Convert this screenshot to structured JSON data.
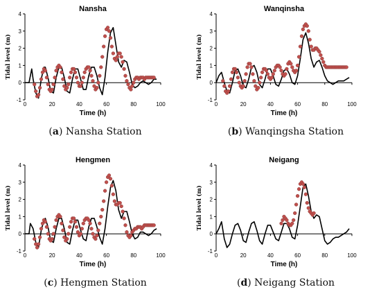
{
  "colors": {
    "model": "#000000",
    "observed": "#c0504d",
    "observed_edge": "#8b3a38",
    "axis": "#000000"
  },
  "chart_data": [
    {
      "type": "line",
      "title": "Nansha",
      "xlabel": "Time (h)",
      "ylabel": "Tidal level (m)",
      "caption_letter": "a",
      "caption_text": " Nansha Station",
      "xlim": [
        0,
        100
      ],
      "ylim": [
        -1,
        4
      ],
      "xticks": [
        0,
        20,
        40,
        60,
        80,
        100
      ],
      "yticks": [
        -1,
        0,
        1,
        2,
        3,
        4
      ],
      "grid": false,
      "series": [
        {
          "style": "line",
          "x": [
            0,
            3,
            5,
            6,
            8,
            10,
            12,
            14,
            15,
            17,
            19,
            21,
            23,
            25,
            27,
            29,
            31,
            33,
            35,
            37,
            39,
            41,
            43,
            45,
            47,
            49,
            51,
            53,
            55,
            57,
            59,
            61,
            63,
            65,
            67,
            69,
            71,
            73,
            75,
            77,
            79,
            81,
            83,
            85,
            87,
            89,
            91,
            93,
            95,
            97
          ],
          "y": [
            0,
            0,
            0.8,
            0.2,
            -0.6,
            -0.9,
            0.2,
            0.9,
            0.9,
            0.3,
            -0.5,
            -0.6,
            0.3,
            0.9,
            0.9,
            0.3,
            -0.5,
            -0.6,
            0.2,
            0.8,
            0.8,
            0.2,
            -0.4,
            -0.4,
            0.4,
            0.9,
            0.9,
            0.4,
            -0.3,
            -0.7,
            0.3,
            1.8,
            2.9,
            3.2,
            2.2,
            1.2,
            0.9,
            1.3,
            1.2,
            0.6,
            -0.1,
            -0.3,
            -0.2,
            0,
            0.1,
            0,
            -0.1,
            0,
            0.2,
            0.2
          ]
        },
        {
          "style": "points",
          "x": [
            7,
            8,
            9,
            10,
            11,
            12,
            13,
            14,
            15,
            16,
            17,
            18,
            19,
            20,
            21,
            22,
            23,
            24,
            25,
            26,
            27,
            28,
            29,
            30,
            31,
            32,
            33,
            34,
            35,
            36,
            37,
            38,
            39,
            40,
            41,
            42,
            43,
            44,
            45,
            46,
            47,
            48,
            49,
            50,
            51,
            52,
            53,
            54,
            55,
            56,
            57,
            58,
            59,
            60,
            61,
            62,
            63,
            64,
            65,
            66,
            67,
            68,
            69,
            70,
            71,
            72,
            73,
            74,
            75,
            76,
            77,
            78,
            79,
            80,
            81,
            82,
            83,
            84,
            85,
            86,
            87,
            88,
            89,
            90,
            91,
            92,
            93,
            94,
            95
          ],
          "y": [
            -0.1,
            -0.5,
            -0.8,
            -0.7,
            -0.3,
            0.2,
            0.6,
            0.8,
            0.7,
            0.3,
            -0.1,
            -0.4,
            -0.5,
            -0.4,
            -0.1,
            0.3,
            0.7,
            0.9,
            1.0,
            0.9,
            0.6,
            0.2,
            -0.2,
            -0.4,
            -0.3,
            -0.1,
            0.3,
            0.6,
            0.8,
            0.8,
            0.6,
            0.3,
            0,
            -0.2,
            -0.2,
            0,
            0.3,
            0.6,
            0.8,
            0.9,
            0.9,
            0.7,
            0.4,
            0.1,
            -0.2,
            -0.4,
            -0.3,
            0,
            0.4,
            0.9,
            1.5,
            2.1,
            2.7,
            3.1,
            3.2,
            3.0,
            2.6,
            2.1,
            1.7,
            1.4,
            1.3,
            1.5,
            1.7,
            1.7,
            1.5,
            1.2,
            0.8,
            0.4,
            0.1,
            -0.1,
            -0.3,
            -0.4,
            -0.2,
            0,
            0.2,
            0.3,
            0.3,
            0.2,
            0.3,
            0.3,
            0.3,
            0.2,
            0.3,
            0.3,
            0.3,
            0.3,
            0.3,
            0.3,
            0.3
          ]
        }
      ]
    },
    {
      "type": "line",
      "title": "Wanqinsha",
      "xlabel": "Time (h)",
      "ylabel": "Tidal level (m)",
      "caption_letter": "b",
      "caption_text": " Wanqingsha Station",
      "xlim": [
        0,
        100
      ],
      "ylim": [
        -1,
        4
      ],
      "xticks": [
        0,
        20,
        40,
        60,
        80,
        100
      ],
      "yticks": [
        -1,
        0,
        1,
        2,
        3,
        4
      ],
      "grid": false,
      "series": [
        {
          "style": "line",
          "x": [
            0,
            2,
            4,
            6,
            8,
            10,
            12,
            14,
            16,
            18,
            20,
            22,
            24,
            26,
            28,
            30,
            32,
            34,
            36,
            38,
            40,
            42,
            44,
            46,
            48,
            50,
            52,
            54,
            56,
            58,
            60,
            62,
            64,
            66,
            68,
            70,
            72,
            74,
            76,
            78,
            80,
            82,
            84,
            86,
            88,
            90,
            92,
            94,
            96,
            98
          ],
          "y": [
            0,
            0.4,
            0.6,
            0,
            -0.5,
            -0.6,
            0,
            0.7,
            0.8,
            0.4,
            -0.2,
            -0.3,
            0.2,
            0.9,
            1.0,
            0.6,
            -0.1,
            -0.3,
            0.2,
            0.8,
            0.8,
            0.4,
            -0.1,
            -0.2,
            0.2,
            0.7,
            0.8,
            0.5,
            0,
            -0.1,
            0.4,
            1.4,
            2.5,
            2.9,
            2.3,
            1.4,
            0.9,
            1.2,
            1.3,
            0.9,
            0.4,
            0.1,
            0,
            -0.1,
            0,
            0.1,
            0.1,
            0.1,
            0.2,
            0.3
          ]
        },
        {
          "style": "points",
          "x": [
            5,
            6,
            7,
            8,
            9,
            10,
            11,
            12,
            13,
            14,
            15,
            16,
            17,
            18,
            19,
            20,
            21,
            22,
            23,
            24,
            25,
            26,
            27,
            28,
            29,
            30,
            31,
            32,
            33,
            34,
            35,
            36,
            37,
            38,
            39,
            40,
            41,
            42,
            43,
            44,
            45,
            46,
            47,
            48,
            49,
            50,
            51,
            52,
            53,
            54,
            55,
            56,
            57,
            58,
            59,
            60,
            61,
            62,
            63,
            64,
            65,
            66,
            67,
            68,
            69,
            70,
            71,
            72,
            73,
            74,
            75,
            76,
            77,
            78,
            79,
            80,
            81,
            82,
            83,
            84,
            85,
            86,
            87,
            88,
            89,
            90,
            91,
            92,
            93,
            94,
            95,
            96
          ],
          "y": [
            0.1,
            -0.2,
            -0.5,
            -0.6,
            -0.5,
            -0.2,
            0.2,
            0.6,
            0.8,
            0.8,
            0.6,
            0.3,
            0,
            -0.2,
            -0.3,
            -0.2,
            0.1,
            0.5,
            0.9,
            1.1,
            1.1,
            0.9,
            0.5,
            0.1,
            -0.2,
            -0.4,
            -0.3,
            0,
            0.3,
            0.6,
            0.8,
            0.8,
            0.7,
            0.5,
            0.3,
            0.2,
            0.3,
            0.5,
            0.7,
            0.9,
            1.0,
            1.0,
            0.9,
            0.7,
            0.5,
            0.4,
            0.5,
            0.8,
            1.1,
            1.2,
            1.1,
            0.9,
            0.7,
            0.6,
            0.7,
            1.0,
            1.5,
            2.1,
            2.7,
            3.1,
            3.3,
            3.4,
            3.3,
            3.0,
            2.5,
            2.1,
            1.9,
            1.9,
            2.0,
            2.0,
            1.9,
            1.8,
            1.6,
            1.4,
            1.2,
            1.0,
            0.9,
            0.9,
            0.9,
            0.9,
            0.9,
            0.9,
            0.9,
            0.9,
            0.9,
            0.9,
            0.9,
            0.9,
            0.9,
            0.9,
            0.9,
            0.9
          ]
        }
      ]
    },
    {
      "type": "line",
      "title": "Hengmen",
      "xlabel": "Time (h)",
      "ylabel": "Tidal level (m)",
      "caption_letter": "c",
      "caption_text": " Hengmen Station",
      "xlim": [
        0,
        100
      ],
      "ylim": [
        -1,
        4
      ],
      "xticks": [
        0,
        20,
        40,
        60,
        80,
        100
      ],
      "yticks": [
        -1,
        0,
        1,
        2,
        3,
        4
      ],
      "grid": false,
      "series": [
        {
          "style": "line",
          "x": [
            0,
            3,
            4,
            6,
            8,
            10,
            12,
            14,
            15,
            17,
            19,
            21,
            23,
            25,
            27,
            29,
            31,
            33,
            35,
            37,
            39,
            41,
            43,
            45,
            47,
            49,
            51,
            53,
            55,
            57,
            59,
            61,
            63,
            65,
            67,
            69,
            71,
            73,
            75,
            77,
            79,
            81,
            83,
            85,
            87,
            89,
            91,
            93,
            95,
            97
          ],
          "y": [
            0,
            0,
            0.6,
            0.3,
            -0.5,
            -0.8,
            0.2,
            0.8,
            0.9,
            0.4,
            -0.4,
            -0.5,
            0.3,
            0.9,
            0.9,
            0.3,
            -0.5,
            -0.6,
            0.2,
            0.8,
            0.8,
            0.2,
            -0.3,
            -0.4,
            0.4,
            0.9,
            0.9,
            0.4,
            -0.2,
            -0.6,
            0.3,
            1.6,
            2.7,
            3.1,
            2.5,
            1.4,
            0.9,
            1.3,
            1.3,
            0.7,
            0,
            -0.3,
            -0.2,
            0.1,
            0.1,
            0,
            -0.1,
            0,
            0.2,
            0.3
          ]
        },
        {
          "style": "points",
          "x": [
            7,
            8,
            9,
            10,
            11,
            12,
            13,
            14,
            15,
            16,
            17,
            18,
            19,
            20,
            21,
            22,
            23,
            24,
            25,
            26,
            27,
            28,
            29,
            30,
            31,
            32,
            33,
            34,
            35,
            36,
            37,
            38,
            39,
            40,
            41,
            42,
            43,
            44,
            45,
            46,
            47,
            48,
            49,
            50,
            51,
            52,
            53,
            54,
            55,
            56,
            57,
            58,
            59,
            60,
            61,
            62,
            63,
            64,
            65,
            66,
            67,
            68,
            69,
            70,
            71,
            72,
            73,
            74,
            75,
            76,
            77,
            78,
            79,
            80,
            81,
            82,
            83,
            84,
            85,
            86,
            87,
            88,
            89,
            90,
            91,
            92,
            93,
            94,
            95
          ],
          "y": [
            -0.3,
            -0.6,
            -0.8,
            -0.6,
            -0.2,
            0.3,
            0.6,
            0.8,
            0.7,
            0.4,
            0,
            -0.3,
            -0.4,
            -0.3,
            0,
            0.4,
            0.8,
            1.0,
            1.1,
            1.0,
            0.6,
            0.2,
            -0.2,
            -0.4,
            -0.3,
            0,
            0.4,
            0.7,
            0.9,
            0.9,
            0.7,
            0.4,
            0.1,
            -0.1,
            0,
            0.3,
            0.6,
            0.8,
            0.9,
            0.9,
            0.8,
            0.6,
            0.3,
            0,
            -0.2,
            -0.3,
            -0.1,
            0.2,
            0.6,
            1.0,
            1.4,
            1.9,
            2.5,
            3.0,
            3.3,
            3.4,
            3.2,
            2.8,
            2.3,
            1.9,
            1.7,
            1.7,
            1.8,
            1.8,
            1.6,
            1.3,
            0.9,
            0.5,
            0.1,
            -0.1,
            -0.2,
            -0.1,
            0.1,
            0.2,
            0.3,
            0.3,
            0.4,
            0.4,
            0.4,
            0.3,
            0.4,
            0.5,
            0.5,
            0.5,
            0.5,
            0.5,
            0.5,
            0.5,
            0.5
          ]
        }
      ]
    },
    {
      "type": "line",
      "title": "Neigang",
      "xlabel": "Time (h)",
      "ylabel": "Tidal level (m)",
      "caption_letter": "d",
      "caption_text": " Neigang Station",
      "xlim": [
        0,
        100
      ],
      "ylim": [
        -1,
        4
      ],
      "xticks": [
        0,
        20,
        40,
        60,
        80,
        100
      ],
      "yticks": [
        -1,
        0,
        1,
        2,
        3,
        4
      ],
      "grid": false,
      "series": [
        {
          "style": "line",
          "x": [
            0,
            2,
            4,
            6,
            8,
            10,
            12,
            14,
            16,
            18,
            20,
            22,
            24,
            26,
            28,
            30,
            32,
            34,
            36,
            38,
            40,
            42,
            44,
            46,
            48,
            50,
            52,
            54,
            56,
            58,
            60,
            62,
            64,
            66,
            68,
            70,
            72,
            74,
            76,
            78,
            80,
            82,
            84,
            86,
            88,
            90,
            92,
            94,
            96,
            98
          ],
          "y": [
            0,
            0.3,
            0.7,
            -0.3,
            -0.8,
            -0.6,
            0,
            0.5,
            0.6,
            0.2,
            -0.4,
            -0.5,
            0.1,
            0.6,
            0.7,
            0.2,
            -0.4,
            -0.6,
            0,
            0.5,
            0.5,
            0.1,
            -0.3,
            -0.4,
            0.1,
            0.6,
            0.6,
            0.3,
            -0.2,
            -0.3,
            0.5,
            1.6,
            2.7,
            2.9,
            2.2,
            1.3,
            0.9,
            1.1,
            1.0,
            0.3,
            -0.4,
            -0.6,
            -0.5,
            -0.3,
            -0.2,
            -0.2,
            -0.1,
            0,
            0.1,
            0.3
          ]
        },
        {
          "style": "points",
          "x": [
            48,
            49,
            50,
            51,
            52,
            53,
            54,
            55,
            56,
            57,
            58,
            59,
            60,
            61,
            62,
            63,
            64,
            65,
            66,
            67,
            68,
            69,
            70,
            71,
            72
          ],
          "y": [
            0.6,
            0.8,
            1.0,
            0.9,
            0.8,
            0.6,
            0.5,
            0.5,
            0.6,
            0.8,
            1.2,
            1.7,
            2.2,
            2.6,
            2.9,
            3.0,
            2.9,
            2.7,
            2.3,
            1.8,
            1.5,
            1.3,
            1.2,
            1.1,
            1.2
          ]
        }
      ]
    }
  ]
}
